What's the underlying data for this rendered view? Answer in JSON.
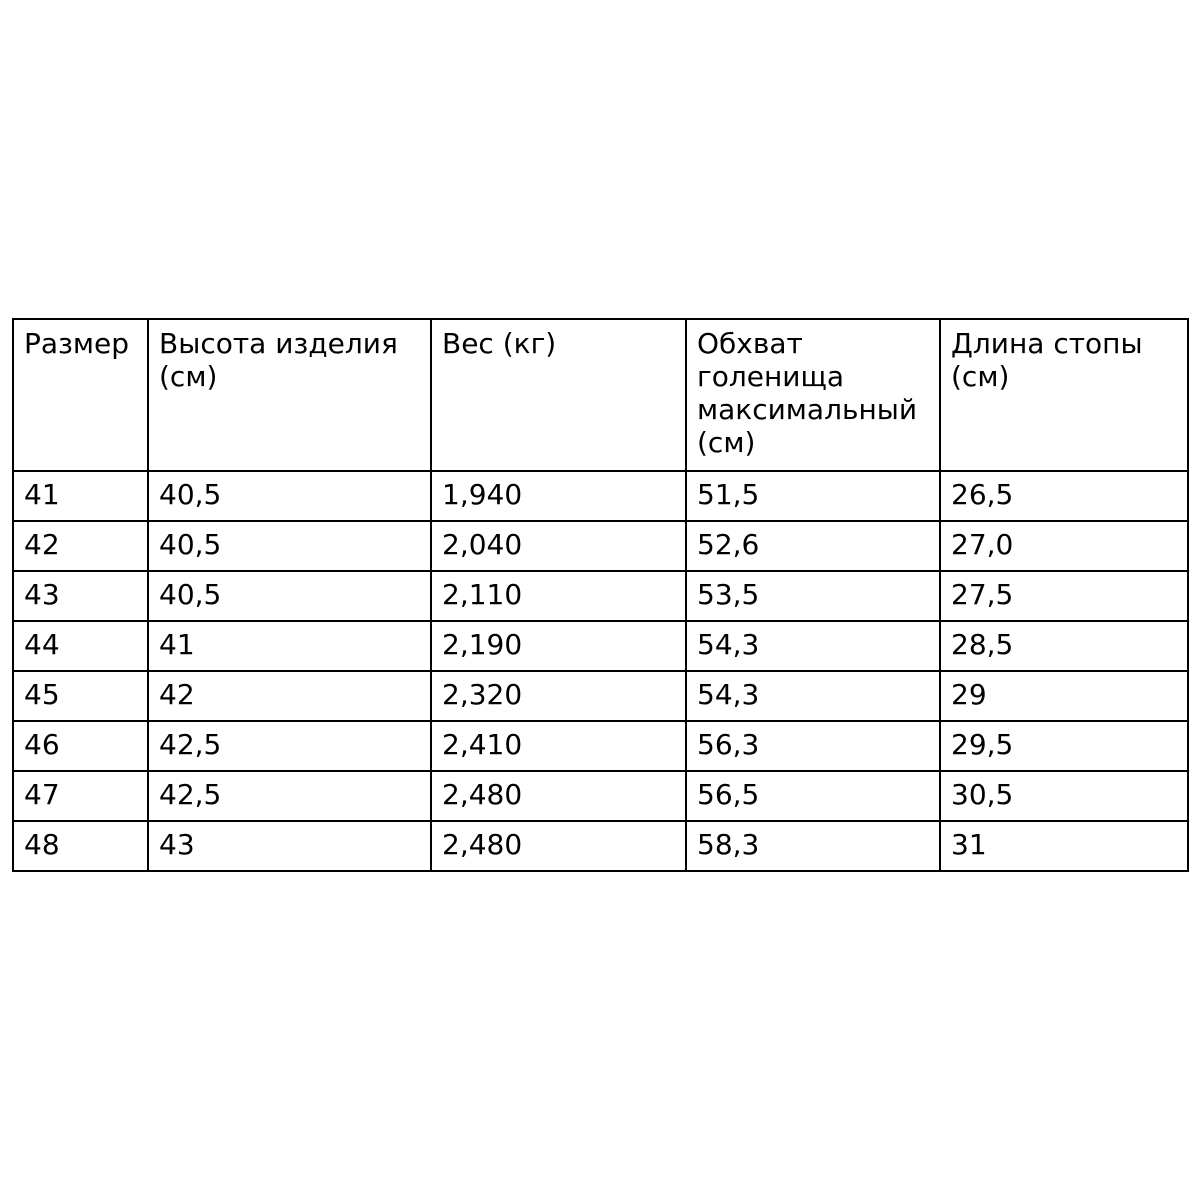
{
  "page": {
    "background": "#ffffff"
  },
  "table": {
    "border_color": "#000000",
    "text_color": "#000000",
    "background": "#ffffff",
    "headers": [
      "Размер",
      "Высота изделия (см)",
      "Вес (кг)",
      "Обхват голенища максимальный (см)",
      "Длина стопы (см)"
    ],
    "rows": [
      [
        "41",
        "40,5",
        "1,940",
        "51,5",
        "26,5"
      ],
      [
        "42",
        "40,5",
        "2,040",
        "52,6",
        "27,0"
      ],
      [
        "43",
        "40,5",
        "2,110",
        "53,5",
        "27,5"
      ],
      [
        "44",
        "41",
        "2,190",
        "54,3",
        "28,5"
      ],
      [
        "45",
        "42",
        "2,320",
        "54,3",
        "29"
      ],
      [
        "46",
        "42,5",
        "2,410",
        "56,3",
        "29,5"
      ],
      [
        "47",
        "42,5",
        "2,480",
        "56,5",
        "30,5"
      ],
      [
        "48",
        "43",
        "2,480",
        "58,3",
        "31"
      ]
    ]
  }
}
